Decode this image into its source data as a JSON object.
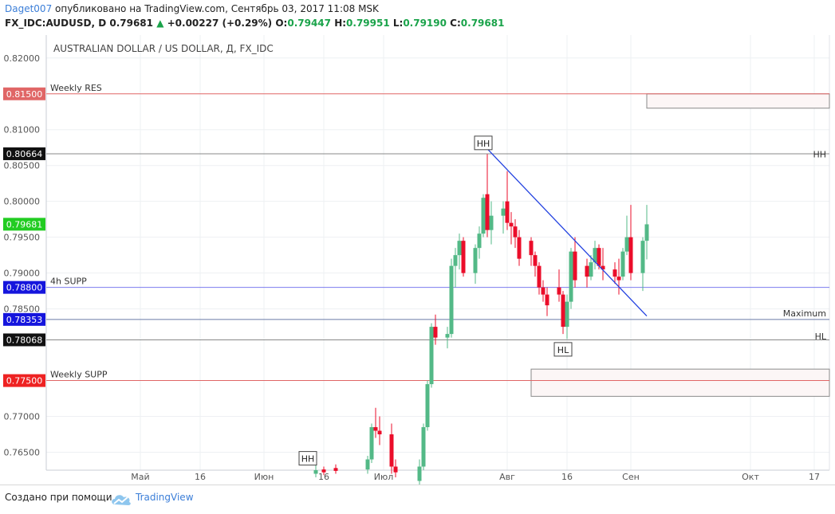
{
  "header": {
    "user": "Daget007",
    "published": "опубликовано на TradingView.com, Сентябрь 03, 2017 11:08 MSK",
    "symbol": "FX_IDC:AUDUSD, D",
    "last": "0.79681",
    "change": "+0.00227 (+0.29%)",
    "o_label": "O:",
    "o": "0.79447",
    "h_label": "H:",
    "h": "0.79951",
    "l_label": "L:",
    "l": "0.79190",
    "c_label": "C:",
    "c": "0.79681"
  },
  "footer": {
    "created_with": "Создано при помощи",
    "brand": "TradingView"
  },
  "colors": {
    "up": "#53b987",
    "down": "#eb0d2a",
    "trendline": "#2342e0",
    "res": "#e06666",
    "supp_blue": "#7b7bee",
    "grid": "#eef0f3"
  },
  "chart_data": {
    "type": "candlestick",
    "title": "AUSTRALIAN DOLLAR / US DOLLAR, Д, FX_IDC",
    "ylim": [
      0.7625,
      0.8232
    ],
    "y_ticks": [
      "0.82000",
      "0.81000",
      "0.80500",
      "0.80000",
      "0.79500",
      "0.79000",
      "0.78500",
      "0.77000",
      "0.76500"
    ],
    "y_tick_values": [
      0.82,
      0.81,
      0.805,
      0.8,
      0.795,
      0.79,
      0.785,
      0.77,
      0.765
    ],
    "x_ticks": [
      {
        "label": "Май",
        "date": "2017-05-01"
      },
      {
        "label": "16",
        "date": "2017-05-16"
      },
      {
        "label": "Июн",
        "date": "2017-06-01"
      },
      {
        "label": "16",
        "date": "2017-06-16"
      },
      {
        "label": "Июл",
        "date": "2017-07-01"
      },
      {
        "label": "Авг",
        "date": "2017-08-01"
      },
      {
        "label": "16",
        "date": "2017-08-16"
      },
      {
        "label": "Сен",
        "date": "2017-09-01"
      },
      {
        "label": "Окт",
        "date": "2017-10-01"
      },
      {
        "label": "17",
        "date": "2017-10-17"
      }
    ],
    "levels": [
      {
        "name": "Weekly RES",
        "value": 0.815,
        "badge": "0.81500",
        "color": "#e06666"
      },
      {
        "name": "",
        "value": 0.80664,
        "badge": "0.80664",
        "color": "#888888",
        "badge_color": "#111111"
      },
      {
        "name": "",
        "value": 0.79681,
        "badge": "0.79681",
        "color": "none",
        "badge_color": "#22cc22"
      },
      {
        "name": "4h SUPP",
        "value": 0.788,
        "badge": "0.78800",
        "color": "#7b7bee",
        "badge_color": "#1515dd"
      },
      {
        "name": "",
        "value": 0.78353,
        "badge": "0.78353",
        "color": "#6a7aa8",
        "badge_color": "#1515dd"
      },
      {
        "name": "",
        "value": 0.78068,
        "badge": "0.78068",
        "color": "#888888",
        "badge_color": "#111111"
      },
      {
        "name": "Weekly SUPP",
        "value": 0.775,
        "badge": "0.77500",
        "color": "#e06666",
        "badge_color": "#ee2222"
      }
    ],
    "right_labels": [
      {
        "text": "HH",
        "value": 0.8066
      },
      {
        "text": "Maximum",
        "value": 0.7844
      },
      {
        "text": "HL",
        "value": 0.7812
      }
    ],
    "annotations": [
      {
        "text": "HH",
        "date": "2017-07-26",
        "value": 0.8081
      },
      {
        "text": "HL",
        "date": "2017-08-15",
        "value": 0.7793
      },
      {
        "text": "HH",
        "date": "2017-06-12",
        "value": 0.7641
      }
    ],
    "zones": [
      {
        "from": "2017-09-05",
        "to": "2017-10-31",
        "y1": 0.815,
        "y2": 0.813
      },
      {
        "from": "2017-08-07",
        "to": "2017-10-31",
        "y1": 0.7766,
        "y2": 0.7728
      }
    ],
    "trendline": {
      "from": {
        "date": "2017-07-25",
        "value": 0.8085
      },
      "to": {
        "date": "2017-09-05",
        "value": 0.784
      }
    },
    "candles": [
      {
        "date": "2017-06-14",
        "o": 0.762,
        "h": 0.7635,
        "l": 0.7615,
        "c": 0.7625
      },
      {
        "date": "2017-06-16",
        "o": 0.7626,
        "h": 0.763,
        "l": 0.7618,
        "c": 0.7622
      },
      {
        "date": "2017-06-19",
        "o": 0.7628,
        "h": 0.7633,
        "l": 0.762,
        "c": 0.7624
      },
      {
        "date": "2017-06-27",
        "o": 0.7626,
        "h": 0.7645,
        "l": 0.762,
        "c": 0.764
      },
      {
        "date": "2017-06-28",
        "o": 0.764,
        "h": 0.769,
        "l": 0.7635,
        "c": 0.7685
      },
      {
        "date": "2017-06-29",
        "o": 0.7685,
        "h": 0.7712,
        "l": 0.767,
        "c": 0.768
      },
      {
        "date": "2017-06-30",
        "o": 0.768,
        "h": 0.77,
        "l": 0.766,
        "c": 0.7675
      },
      {
        "date": "2017-07-03",
        "o": 0.7675,
        "h": 0.769,
        "l": 0.762,
        "c": 0.763
      },
      {
        "date": "2017-07-04",
        "o": 0.763,
        "h": 0.764,
        "l": 0.7615,
        "c": 0.7622
      },
      {
        "date": "2017-07-10",
        "o": 0.761,
        "h": 0.764,
        "l": 0.7605,
        "c": 0.763
      },
      {
        "date": "2017-07-11",
        "o": 0.763,
        "h": 0.769,
        "l": 0.7625,
        "c": 0.7685
      },
      {
        "date": "2017-07-12",
        "o": 0.7685,
        "h": 0.775,
        "l": 0.768,
        "c": 0.7745
      },
      {
        "date": "2017-07-13",
        "o": 0.7745,
        "h": 0.783,
        "l": 0.774,
        "c": 0.7825
      },
      {
        "date": "2017-07-14",
        "o": 0.7825,
        "h": 0.7842,
        "l": 0.78,
        "c": 0.781
      },
      {
        "date": "2017-07-17",
        "o": 0.781,
        "h": 0.7825,
        "l": 0.7795,
        "c": 0.7815
      },
      {
        "date": "2017-07-18",
        "o": 0.7815,
        "h": 0.792,
        "l": 0.781,
        "c": 0.791
      },
      {
        "date": "2017-07-19",
        "o": 0.791,
        "h": 0.7935,
        "l": 0.788,
        "c": 0.7925
      },
      {
        "date": "2017-07-20",
        "o": 0.7925,
        "h": 0.7955,
        "l": 0.7905,
        "c": 0.7945
      },
      {
        "date": "2017-07-21",
        "o": 0.7945,
        "h": 0.795,
        "l": 0.7895,
        "c": 0.79
      },
      {
        "date": "2017-07-24",
        "o": 0.79,
        "h": 0.794,
        "l": 0.7885,
        "c": 0.7935
      },
      {
        "date": "2017-07-25",
        "o": 0.7935,
        "h": 0.7965,
        "l": 0.792,
        "c": 0.7955
      },
      {
        "date": "2017-07-26",
        "o": 0.7955,
        "h": 0.801,
        "l": 0.795,
        "c": 0.8005
      },
      {
        "date": "2017-07-27",
        "o": 0.801,
        "h": 0.8066,
        "l": 0.795,
        "c": 0.796
      },
      {
        "date": "2017-07-28",
        "o": 0.796,
        "h": 0.8,
        "l": 0.794,
        "c": 0.798
      },
      {
        "date": "2017-07-31",
        "o": 0.798,
        "h": 0.8,
        "l": 0.7955,
        "c": 0.799
      },
      {
        "date": "2017-08-01",
        "o": 0.8,
        "h": 0.8042,
        "l": 0.796,
        "c": 0.797
      },
      {
        "date": "2017-08-02",
        "o": 0.797,
        "h": 0.7985,
        "l": 0.794,
        "c": 0.7965
      },
      {
        "date": "2017-08-03",
        "o": 0.7965,
        "h": 0.7975,
        "l": 0.7935,
        "c": 0.795
      },
      {
        "date": "2017-08-04",
        "o": 0.795,
        "h": 0.796,
        "l": 0.791,
        "c": 0.792
      },
      {
        "date": "2017-08-07",
        "o": 0.7945,
        "h": 0.795,
        "l": 0.791,
        "c": 0.7925
      },
      {
        "date": "2017-08-08",
        "o": 0.7925,
        "h": 0.793,
        "l": 0.7895,
        "c": 0.791
      },
      {
        "date": "2017-08-09",
        "o": 0.791,
        "h": 0.7915,
        "l": 0.787,
        "c": 0.788
      },
      {
        "date": "2017-08-10",
        "o": 0.788,
        "h": 0.789,
        "l": 0.786,
        "c": 0.787
      },
      {
        "date": "2017-08-11",
        "o": 0.787,
        "h": 0.788,
        "l": 0.784,
        "c": 0.7855
      },
      {
        "date": "2017-08-14",
        "o": 0.788,
        "h": 0.7905,
        "l": 0.786,
        "c": 0.787
      },
      {
        "date": "2017-08-15",
        "o": 0.787,
        "h": 0.7875,
        "l": 0.7815,
        "c": 0.7825
      },
      {
        "date": "2017-08-16",
        "o": 0.7825,
        "h": 0.787,
        "l": 0.7808,
        "c": 0.786
      },
      {
        "date": "2017-08-17",
        "o": 0.786,
        "h": 0.7935,
        "l": 0.785,
        "c": 0.793
      },
      {
        "date": "2017-08-18",
        "o": 0.793,
        "h": 0.795,
        "l": 0.788,
        "c": 0.789
      },
      {
        "date": "2017-08-21",
        "o": 0.791,
        "h": 0.792,
        "l": 0.788,
        "c": 0.7895
      },
      {
        "date": "2017-08-22",
        "o": 0.7895,
        "h": 0.7925,
        "l": 0.789,
        "c": 0.7915
      },
      {
        "date": "2017-08-23",
        "o": 0.7915,
        "h": 0.7945,
        "l": 0.7905,
        "c": 0.7935
      },
      {
        "date": "2017-08-24",
        "o": 0.7935,
        "h": 0.794,
        "l": 0.7905,
        "c": 0.791
      },
      {
        "date": "2017-08-25",
        "o": 0.791,
        "h": 0.7935,
        "l": 0.789,
        "c": 0.7905
      },
      {
        "date": "2017-08-28",
        "o": 0.7905,
        "h": 0.7915,
        "l": 0.7885,
        "c": 0.7895
      },
      {
        "date": "2017-08-29",
        "o": 0.7895,
        "h": 0.792,
        "l": 0.787,
        "c": 0.789
      },
      {
        "date": "2017-08-30",
        "o": 0.7895,
        "h": 0.7935,
        "l": 0.789,
        "c": 0.793
      },
      {
        "date": "2017-08-31",
        "o": 0.793,
        "h": 0.798,
        "l": 0.7925,
        "c": 0.795
      },
      {
        "date": "2017-09-01",
        "o": 0.795,
        "h": 0.7995,
        "l": 0.789,
        "c": 0.79
      },
      {
        "date": "2017-09-04",
        "o": 0.79,
        "h": 0.795,
        "l": 0.7875,
        "c": 0.7945
      },
      {
        "date": "2017-09-05",
        "o": 0.7945,
        "h": 0.7995,
        "l": 0.7919,
        "c": 0.7968
      }
    ]
  }
}
